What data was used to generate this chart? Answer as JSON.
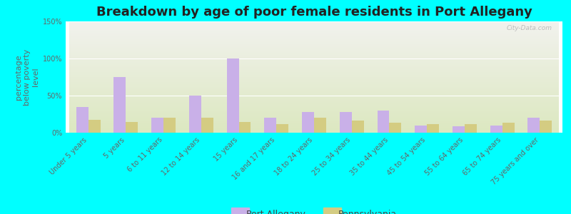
{
  "title": "Breakdown by age of poor female residents in Port Allegany",
  "ylabel": "percentage\nbelow poverty\nlevel",
  "categories": [
    "Under 5 years",
    "5 years",
    "6 to 11 years",
    "12 to 14 years",
    "15 years",
    "16 and 17 years",
    "18 to 24 years",
    "25 to 34 years",
    "35 to 44 years",
    "45 to 54 years",
    "55 to 64 years",
    "65 to 74 years",
    "75 years and over"
  ],
  "port_allegany": [
    35,
    75,
    20,
    50,
    100,
    20,
    28,
    28,
    30,
    10,
    9,
    10,
    20
  ],
  "pennsylvania": [
    17,
    14,
    20,
    20,
    14,
    12,
    20,
    16,
    13,
    12,
    12,
    13,
    16
  ],
  "port_color": "#c9b0e8",
  "penn_color": "#d4cc82",
  "bg_outer": "#00ffff",
  "bg_plot_top": "#f2f2ee",
  "bg_plot_bottom": "#dce8c0",
  "ylim": [
    0,
    150
  ],
  "yticks": [
    0,
    50,
    100,
    150
  ],
  "ytick_labels": [
    "0%",
    "50%",
    "100%",
    "150%"
  ],
  "bar_width": 0.32,
  "title_fontsize": 13,
  "axis_label_fontsize": 8,
  "tick_fontsize": 7,
  "legend_fontsize": 9,
  "watermark": "City-Data.com"
}
